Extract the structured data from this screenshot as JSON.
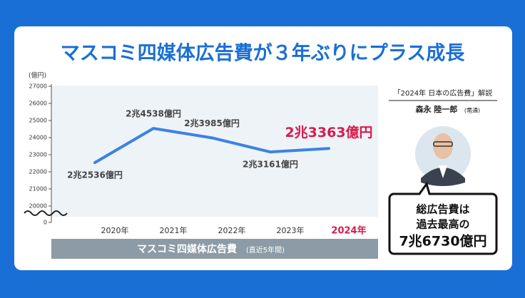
{
  "header": {
    "title": "マスコミ四媒体広告費が３年ぶりにプラス成長"
  },
  "chart_data": {
    "type": "line",
    "y_label": "(億円)",
    "categories": [
      "2020年",
      "2021年",
      "2022年",
      "2023年",
      "2024年"
    ],
    "series": [
      {
        "name": "マスコミ四媒体広告費",
        "color": "#3c82e4",
        "values": [
          22536,
          24538,
          23985,
          23161,
          23363
        ],
        "value_labels": [
          "2兆2536億円",
          "2兆4538億円",
          "2兆3985億円",
          "2兆3161億円",
          "2兆3363億円"
        ]
      }
    ],
    "ylim": [
      20000,
      27000
    ],
    "yticks": [
      20000,
      21000,
      22000,
      23000,
      24000,
      25000,
      26000,
      27000
    ],
    "axis_break_base": 0,
    "highlight_index": 4,
    "highlight_color": "#d81b4c",
    "footer_label": "マスコミ四媒体広告費",
    "footer_note": "(直近5年間)"
  },
  "side": {
    "heading": "「2024年 日本の広告費」解説",
    "person": "森永 陸一郎",
    "affiliation": "(電通)",
    "callout": [
      "総広告費は",
      "過去最高の",
      "7兆6730億円"
    ]
  }
}
